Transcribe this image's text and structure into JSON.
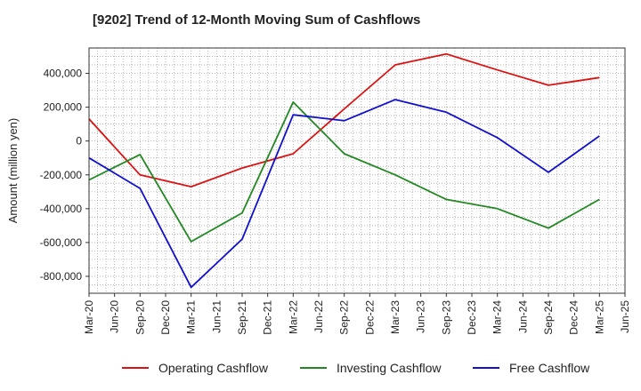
{
  "chart_data": {
    "type": "line",
    "title": "[9202]  Trend of 12-Month Moving Sum of Cashflows",
    "xlabel": "",
    "ylabel": "Amount (million yen)",
    "ylim": [
      -900000,
      550000
    ],
    "yticks": [
      400000,
      200000,
      0,
      -200000,
      -400000,
      -600000,
      -800000
    ],
    "ytick_labels": [
      "400,000",
      "200,000",
      "0",
      "-200,000",
      "-400,000",
      "-600,000",
      "-800,000"
    ],
    "x_labels": [
      "Mar-20",
      "Jun-20",
      "Sep-20",
      "Dec-20",
      "Mar-21",
      "Jun-21",
      "Sep-21",
      "Dec-21",
      "Mar-22",
      "Jun-22",
      "Sep-22",
      "Dec-22",
      "Mar-23",
      "Jun-23",
      "Sep-23",
      "Dec-23",
      "Mar-24",
      "Jun-24",
      "Sep-24",
      "Dec-24",
      "Mar-25",
      "Jun-25"
    ],
    "grid": true,
    "legend_position": "bottom",
    "series": [
      {
        "name": "Operating Cashflow",
        "color": "#dd1111",
        "points": [
          {
            "x": "Mar-20",
            "y": 130000
          },
          {
            "x": "Sep-20",
            "y": -200000
          },
          {
            "x": "Mar-21",
            "y": -270000
          },
          {
            "x": "Sep-21",
            "y": -160000
          },
          {
            "x": "Mar-22",
            "y": -75000
          },
          {
            "x": "Sep-22",
            "y": 190000
          },
          {
            "x": "Mar-23",
            "y": 450000
          },
          {
            "x": "Sep-23",
            "y": 515000
          },
          {
            "x": "Mar-24",
            "y": 420000
          },
          {
            "x": "Sep-24",
            "y": 330000
          },
          {
            "x": "Mar-25",
            "y": 375000
          }
        ]
      },
      {
        "name": "Investing Cashflow",
        "color": "#228822",
        "points": [
          {
            "x": "Mar-20",
            "y": -230000
          },
          {
            "x": "Sep-20",
            "y": -80000
          },
          {
            "x": "Mar-21",
            "y": -595000
          },
          {
            "x": "Sep-21",
            "y": -425000
          },
          {
            "x": "Mar-22",
            "y": 230000
          },
          {
            "x": "Sep-22",
            "y": -75000
          },
          {
            "x": "Mar-23",
            "y": -200000
          },
          {
            "x": "Sep-23",
            "y": -345000
          },
          {
            "x": "Mar-24",
            "y": -400000
          },
          {
            "x": "Sep-24",
            "y": -515000
          },
          {
            "x": "Mar-25",
            "y": -345000
          }
        ]
      },
      {
        "name": "Free Cashflow",
        "color": "#1111cc",
        "points": [
          {
            "x": "Mar-20",
            "y": -100000
          },
          {
            "x": "Sep-20",
            "y": -280000
          },
          {
            "x": "Mar-21",
            "y": -865000
          },
          {
            "x": "Sep-21",
            "y": -580000
          },
          {
            "x": "Mar-22",
            "y": 155000
          },
          {
            "x": "Sep-22",
            "y": 120000
          },
          {
            "x": "Mar-23",
            "y": 245000
          },
          {
            "x": "Sep-23",
            "y": 170000
          },
          {
            "x": "Mar-24",
            "y": 20000
          },
          {
            "x": "Sep-24",
            "y": -185000
          },
          {
            "x": "Mar-25",
            "y": 30000
          }
        ]
      }
    ]
  }
}
